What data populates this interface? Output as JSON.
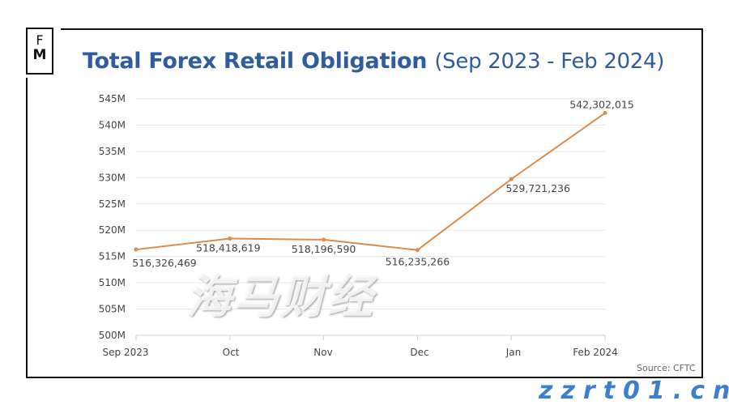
{
  "logo": {
    "line1": "F",
    "line2": "M"
  },
  "title": {
    "main": "Total Forex Retail Obligation",
    "sub": "(Sep 2023 - Feb 2024)"
  },
  "source": "Source: CFTC",
  "watermark": {
    "cn": "海马财经",
    "url": "zzrt01.cn"
  },
  "chart_data": {
    "type": "line",
    "title": "Total Forex Retail Obligation (Sep 2023 - Feb 2024)",
    "categories": [
      "Sep 2023",
      "Oct",
      "Nov",
      "Dec",
      "Jan",
      "Feb 2024"
    ],
    "values": [
      516326469,
      518418619,
      518196590,
      516235266,
      529721236,
      542302015
    ],
    "data_labels": [
      "516,326,469",
      "518,418,619",
      "518,196,590",
      "516,235,266",
      "529,721,236",
      "542,302,015"
    ],
    "ylim": [
      500000000,
      545000000
    ],
    "yticks": [
      "500M",
      "505M",
      "510M",
      "515M",
      "520M",
      "525M",
      "530M",
      "535M",
      "540M",
      "545M"
    ],
    "grid": true,
    "line_color": "#e08a4a",
    "title_color": "#2f5b9f"
  }
}
